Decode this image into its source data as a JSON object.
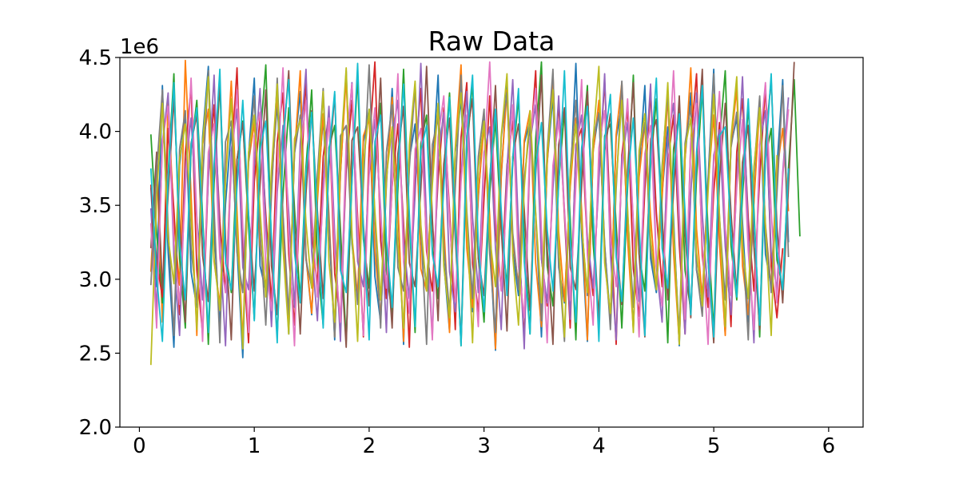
{
  "chart_data": {
    "type": "line",
    "title": "Raw Data",
    "xlabel": "",
    "ylabel": "",
    "y_offset_label": "1e6",
    "xlim": [
      -0.17,
      6.3
    ],
    "ylim": [
      2.0,
      4.5
    ],
    "x_ticks": [
      0,
      1,
      2,
      3,
      4,
      5,
      6
    ],
    "x_tick_labels": [
      "0",
      "1",
      "2",
      "3",
      "4",
      "5",
      "6"
    ],
    "y_ticks": [
      2.0,
      2.5,
      3.0,
      3.5,
      4.0,
      4.5
    ],
    "y_tick_labels": [
      "2.0",
      "2.5",
      "3.0",
      "3.5",
      "4.0",
      "4.5"
    ],
    "grid": false,
    "legend": "none",
    "x_start": 0.1,
    "x_step": 0.05,
    "colors": [
      "#1f77b4",
      "#ff7f0e",
      "#2ca02c",
      "#d62728",
      "#9467bd",
      "#8c564b",
      "#e377c2",
      "#7f7f7f",
      "#bcbd22",
      "#17becf"
    ],
    "series_values": [
      [
        3.62,
        2.95,
        4.31,
        3.18,
        2.54,
        3.77,
        4.12,
        3.05,
        2.81,
        3.96,
        4.44,
        3.33,
        2.68,
        3.51,
        4.02,
        3.21,
        2.47,
        3.84,
        4.36,
        3.09,
        2.92,
        3.67,
        4.19,
        3.42,
        2.63,
        3.88,
        4.27,
        3.15,
        2.76,
        3.58,
        4.09,
        3.36,
        2.59,
        3.71,
        4.41,
        3.24,
        2.87,
        3.93,
        4.15,
        3.02,
        2.71,
        3.64,
        4.29,
        3.47,
        2.56,
        3.81,
        4.05,
        3.29,
        2.94,
        3.73,
        4.38,
        3.12,
        2.65,
        3.86,
        4.22,
        3.39,
        2.78,
        3.55,
        4.11,
        3.27,
        2.52,
        3.69,
        4.33,
        3.19,
        2.89,
        3.92,
        4.07,
        3.44,
        2.61,
        3.79,
        4.24,
        3.08,
        2.84,
        3.63,
        4.46,
        3.31,
        2.58,
        3.87,
        4.13,
        3.22,
        2.73,
        3.96,
        4.18,
        3.35,
        2.67,
        3.74,
        4.31,
        3.14,
        2.91,
        3.58,
        4.03,
        3.41,
        2.55,
        3.82,
        4.26,
        3.06,
        2.86,
        3.68,
        4.42,
        3.28,
        2.63,
        3.91,
        4.09,
        3.38,
        2.71,
        3.54,
        4.21,
        3.17,
        2.95,
        3.76,
        4.35,
        3.25
      ],
      [
        3.05,
        3.84,
        2.71,
        4.22,
        3.39,
        2.96,
        4.48,
        3.57,
        2.62,
        3.91,
        4.15,
        3.12,
        2.83,
        3.68,
        4.34,
        3.46,
        2.57,
        3.79,
        4.06,
        3.23,
        2.94,
        3.61,
        4.27,
        3.38,
        2.69,
        3.85,
        4.41,
        3.16,
        2.77,
        3.53,
        4.12,
        3.44,
        2.61,
        3.72,
        4.37,
        3.29,
        2.88,
        3.97,
        4.08,
        3.19,
        2.74,
        3.66,
        4.23,
        3.51,
        2.58,
        3.83,
        4.31,
        3.07,
        2.92,
        3.75,
        4.17,
        3.36,
        2.64,
        3.89,
        4.45,
        3.21,
        2.81,
        3.57,
        4.04,
        3.43,
        2.53,
        3.71,
        4.28,
        3.26,
        2.96,
        3.94,
        4.14,
        3.11,
        2.68,
        3.78,
        4.39,
        3.32,
        2.85,
        3.62,
        4.09,
        3.47,
        2.59,
        3.86,
        4.21,
        3.14,
        2.72,
        3.98,
        4.33,
        3.27,
        2.66,
        3.69,
        4.06,
        3.42,
        2.93,
        3.55,
        4.25,
        3.18,
        2.57,
        3.81,
        4.43,
        3.34,
        2.87,
        3.64,
        4.11,
        3.24,
        2.62,
        3.92,
        4.29,
        3.09,
        2.76,
        3.52,
        4.18,
        3.37,
        2.94,
        3.73,
        4.02,
        3.46
      ],
      [
        3.98,
        3.31,
        2.84,
        3.72,
        4.39,
        3.14,
        2.67,
        3.88,
        4.21,
        3.43,
        2.56,
        3.65,
        4.32,
        3.19,
        2.91,
        3.81,
        4.07,
        3.36,
        2.73,
        3.94,
        4.45,
        3.22,
        2.62,
        3.57,
        4.16,
        3.48,
        2.85,
        3.76,
        4.28,
        3.11,
        2.69,
        3.89,
        4.04,
        3.34,
        2.58,
        3.67,
        4.37,
        3.27,
        2.94,
        3.83,
        4.19,
        3.05,
        2.77,
        3.61,
        4.42,
        3.39,
        2.64,
        3.92,
        4.11,
        3.21,
        2.87,
        3.74,
        4.26,
        3.46,
        2.55,
        3.86,
        4.34,
        3.15,
        2.71,
        3.59,
        4.08,
        3.33,
        2.96,
        3.79,
        4.23,
        3.28,
        2.63,
        3.95,
        4.47,
        3.09,
        2.82,
        3.66,
        4.14,
        3.41,
        2.59,
        3.84,
        4.31,
        3.24,
        2.74,
        3.97,
        4.05,
        3.37,
        2.67,
        3.62,
        4.38,
        3.17,
        2.92,
        3.77,
        4.22,
        3.44,
        2.57,
        3.88,
        4.13,
        3.06,
        2.79,
        3.69,
        4.29,
        3.32,
        2.65,
        3.93,
        4.41,
        3.23,
        2.86,
        3.56,
        4.17,
        3.47,
        2.61,
        3.82,
        4.02,
        3.13,
        2.94,
        3.75,
        4.35,
        3.29
      ],
      [
        3.64,
        3.12,
        2.88,
        4.02,
        3.47,
        2.76,
        3.85,
        4.31,
        3.06,
        2.63,
        3.71,
        4.18,
        3.39,
        2.91,
        3.79,
        4.43,
        3.21,
        2.57,
        3.66,
        4.09,
        3.44,
        2.84,
        3.93,
        4.26,
        3.17,
        2.69,
        3.58,
        4.36,
        3.31,
        2.96,
        3.83,
        4.12,
        3.04,
        2.72,
        3.74,
        4.21,
        3.42,
        2.61,
        3.89,
        4.47,
        3.26,
        2.87,
        3.63,
        4.05,
        3.37,
        2.54,
        3.81,
        4.29,
        3.19,
        2.92,
        3.68,
        4.16,
        3.46,
        2.66,
        3.96,
        4.33,
        3.11,
        2.78,
        3.55,
        4.24,
        3.35,
        2.93,
        3.77,
        4.07,
        3.28,
        2.59,
        3.87,
        4.41,
        3.14,
        2.82,
        3.65,
        4.19,
        3.43,
        2.67,
        3.91,
        4.02,
        3.22,
        2.89,
        3.72,
        4.34,
        3.38,
        2.56,
        3.84,
        4.15,
        3.07,
        2.75,
        3.61,
        4.27,
        3.45,
        2.95,
        3.78,
        4.11,
        3.23,
        2.63,
        3.94,
        4.39,
        3.16,
        2.81,
        3.59,
        4.06,
        3.34,
        2.68,
        3.86,
        4.22,
        3.41,
        2.92,
        3.69,
        4.31,
        3.09,
        2.74,
        3.21
      ],
      [
        3.48,
        2.79,
        3.91,
        4.26,
        3.15,
        2.62,
        3.74,
        4.09,
        3.41,
        2.86,
        3.68,
        4.38,
        3.24,
        2.55,
        3.87,
        4.15,
        3.08,
        2.93,
        3.77,
        4.29,
        3.36,
        2.68,
        3.59,
        4.04,
        3.45,
        2.81,
        3.92,
        4.42,
        3.19,
        2.72,
        3.65,
        4.17,
        3.31,
        2.58,
        3.84,
        4.33,
        3.12,
        2.95,
        3.71,
        4.08,
        3.47,
        2.64,
        3.96,
        4.21,
        3.26,
        2.87,
        3.57,
        4.46,
        3.38,
        2.61,
        3.82,
        4.13,
        3.05,
        2.78,
        3.69,
        4.27,
        3.42,
        2.91,
        3.86,
        4.03,
        3.21,
        2.66,
        3.75,
        4.35,
        3.33,
        2.53,
        3.93,
        4.18,
        3.14,
        2.84,
        3.62,
        4.24,
        3.46,
        2.73,
        3.89,
        4.11,
        3.28,
        2.94,
        3.67,
        4.39,
        3.17,
        2.59,
        3.81,
        4.06,
        3.39,
        2.85,
        3.73,
        4.32,
        3.09,
        2.71,
        3.95,
        4.19,
        3.35,
        2.63,
        3.58,
        4.26,
        3.44,
        2.88,
        3.84,
        4.01,
        3.22,
        2.76,
        3.66,
        4.37,
        3.31,
        2.57,
        3.91,
        4.14,
        3.18,
        2.93,
        3.72,
        4.23
      ],
      [
        3.21,
        3.86,
        2.94,
        3.57,
        4.23,
        3.38,
        2.71,
        3.92,
        4.11,
        3.16,
        2.85,
        3.73,
        4.34,
        3.27,
        2.59,
        3.81,
        4.06,
        3.44,
        2.92,
        3.64,
        4.28,
        3.09,
        2.76,
        3.89,
        4.41,
        3.33,
        2.63,
        3.58,
        4.14,
        3.46,
        2.87,
        3.76,
        4.25,
        3.19,
        2.54,
        3.94,
        4.03,
        3.37,
        2.82,
        3.69,
        4.36,
        3.24,
        2.67,
        3.85,
        4.17,
        3.11,
        2.95,
        3.61,
        4.44,
        3.41,
        2.72,
        3.78,
        4.09,
        3.28,
        2.58,
        3.97,
        4.22,
        3.14,
        2.89,
        3.66,
        4.31,
        3.35,
        2.65,
        3.83,
        4.05,
        3.47,
        2.79,
        3.71,
        4.38,
        3.21,
        2.56,
        3.91,
        4.16,
        3.08,
        2.93,
        3.63,
        4.27,
        3.43,
        2.69,
        3.87,
        4.12,
        3.25,
        2.83,
        3.74,
        4.33,
        3.17,
        2.61,
        3.95,
        4.08,
        3.39,
        2.86,
        3.59,
        4.24,
        3.31,
        2.74,
        3.82,
        4.42,
        3.13,
        2.57,
        3.68,
        4.19,
        3.45,
        2.91,
        3.79,
        4.04,
        3.22,
        2.66,
        3.93,
        4.35,
        3.36,
        2.84,
        3.62,
        4.47
      ],
      [
        3.38,
        2.67,
        3.94,
        4.17,
        3.25,
        2.83,
        3.61,
        4.36,
        3.42,
        2.58,
        3.86,
        4.05,
        3.14,
        2.91,
        3.73,
        4.28,
        3.36,
        2.64,
        3.97,
        4.13,
        3.07,
        2.79,
        3.68,
        4.43,
        3.29,
        2.55,
        3.84,
        4.21,
        3.46,
        2.88,
        3.57,
        4.09,
        3.18,
        2.71,
        3.92,
        4.32,
        3.34,
        2.62,
        3.75,
        4.16,
        3.41,
        2.94,
        3.63,
        4.39,
        3.12,
        2.77,
        3.88,
        4.02,
        3.27,
        2.59,
        3.96,
        4.24,
        3.39,
        2.85,
        3.66,
        4.11,
        3.22,
        2.68,
        3.81,
        4.47,
        3.44,
        2.92,
        3.59,
        4.18,
        3.09,
        2.74,
        3.93,
        4.29,
        3.33,
        2.57,
        3.77,
        4.07,
        3.47,
        2.86,
        3.64,
        4.35,
        3.16,
        2.69,
        3.89,
        4.14,
        3.28,
        2.95,
        3.72,
        4.22,
        3.37,
        2.61,
        3.85,
        4.04,
        3.11,
        2.82,
        3.67,
        4.41,
        3.43,
        2.73,
        3.94,
        4.19,
        3.24,
        2.56,
        3.78,
        4.27,
        3.35,
        2.89,
        3.62,
        4.08,
        3.19,
        2.66,
        3.91,
        4.33,
        3.46,
        2.84,
        3.69,
        4.15
      ],
      [
        2.96,
        3.73,
        4.28,
        3.35,
        2.62,
        3.88,
        4.14,
        3.21,
        2.84,
        3.66,
        4.41,
        3.47,
        2.57,
        3.93,
        4.07,
        3.18,
        2.91,
        3.79,
        4.24,
        3.32,
        2.69,
        3.58,
        4.36,
        3.44,
        2.76,
        3.85,
        4.11,
        3.13,
        2.95,
        3.71,
        4.29,
        3.39,
        2.61,
        3.97,
        4.04,
        3.26,
        2.83,
        3.64,
        4.45,
        3.41,
        2.67,
        3.86,
        4.18,
        3.08,
        2.92,
        3.75,
        4.32,
        3.34,
        2.56,
        3.91,
        4.09,
        3.23,
        2.78,
        3.62,
        4.38,
        3.46,
        2.87,
        3.83,
        4.15,
        3.17,
        2.64,
        3.96,
        4.26,
        3.31,
        2.93,
        3.68,
        4.03,
        3.43,
        2.72,
        3.87,
        4.42,
        3.12,
        2.58,
        3.74,
        4.21,
        3.37,
        2.89,
        3.95,
        4.12,
        3.24,
        2.66,
        3.61,
        4.34,
        3.45,
        2.81,
        3.84,
        4.06,
        3.19,
        2.94,
        3.77,
        4.27,
        3.33,
        2.63,
        3.92,
        4.17,
        3.07,
        2.75,
        3.65,
        4.39,
        3.42,
        2.86,
        3.89,
        4.13,
        3.28,
        2.59,
        3.73,
        4.24,
        3.36,
        2.91,
        3.58,
        4.31,
        3.15
      ],
      [
        2.42,
        3.56,
        4.19,
        3.28,
        2.97,
        3.81,
        4.05,
        3.43,
        2.66,
        3.92,
        4.37,
        3.14,
        2.79,
        3.67,
        4.22,
        3.35,
        2.53,
        3.86,
        4.11,
        3.47,
        2.88,
        3.74,
        4.32,
        3.21,
        2.63,
        3.95,
        4.08,
        3.38,
        2.94,
        3.61,
        4.27,
        3.12,
        2.71,
        3.83,
        4.43,
        3.31,
        2.58,
        3.78,
        4.15,
        3.46,
        2.86,
        3.69,
        4.03,
        3.24,
        2.67,
        3.91,
        4.34,
        3.37,
        2.92,
        3.64,
        4.19,
        3.09,
        2.74,
        3.88,
        4.26,
        3.42,
        2.57,
        3.75,
        4.07,
        3.29,
        2.95,
        3.97,
        4.39,
        3.16,
        2.69,
        3.62,
        4.14,
        3.45,
        2.84,
        3.85,
        4.28,
        3.22,
        2.61,
        3.71,
        4.05,
        3.36,
        2.91,
        3.94,
        4.44,
        3.11,
        2.77,
        3.66,
        4.21,
        3.48,
        2.64,
        3.87,
        4.12,
        3.27,
        2.93,
        3.73,
        4.33,
        3.34,
        2.56,
        3.89,
        4.09,
        3.18,
        2.82,
        3.59,
        4.25,
        3.43,
        2.68,
        3.96,
        4.37,
        3.23,
        2.87,
        3.76,
        4.16,
        3.35,
        2.62,
        3.84
      ],
      [
        3.75,
        3.02,
        2.58,
        3.69,
        4.33,
        3.24,
        2.86,
        3.91,
        4.16,
        3.37,
        2.64,
        3.78,
        4.42,
        3.11,
        2.93,
        3.63,
        4.21,
        3.45,
        2.72,
        3.88,
        4.07,
        3.29,
        2.57,
        3.96,
        4.35,
        3.18,
        2.84,
        3.71,
        4.13,
        3.41,
        2.67,
        3.85,
        4.27,
        3.06,
        2.91,
        3.66,
        4.46,
        3.33,
        2.59,
        3.93,
        4.11,
        3.26,
        2.81,
        3.74,
        4.32,
        3.44,
        2.68,
        3.87,
        4.04,
        3.17,
        2.95,
        3.62,
        4.23,
        3.38,
        2.55,
        3.95,
        4.38,
        3.23,
        2.78,
        3.69,
        4.15,
        3.47,
        2.89,
        3.82,
        4.29,
        3.12,
        2.63,
        3.77,
        4.06,
        3.34,
        2.92,
        3.64,
        4.41,
        3.27,
        2.71,
        3.89,
        4.17,
        3.43,
        2.58,
        3.94,
        4.25,
        3.15,
        2.85,
        3.67,
        4.09,
        3.36,
        2.62,
        3.83,
        4.36,
        3.21,
        2.94,
        3.72,
        4.12,
        3.46,
        2.76,
        3.86,
        4.31,
        3.13,
        2.61,
        3.97,
        4.03,
        3.32,
        2.88,
        3.65,
        4.22,
        3.41,
        2.69,
        3.81,
        4.39,
        3.19,
        2.93,
        3.75
      ]
    ]
  }
}
